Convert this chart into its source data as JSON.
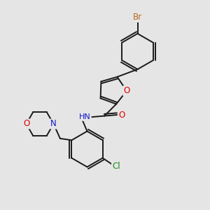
{
  "background_color": "#e5e5e5",
  "bond_color": "#1a1a1a",
  "atom_colors": {
    "Br": "#b8681e",
    "O": "#e00000",
    "N": "#1414cc",
    "Cl": "#1a8c1a"
  },
  "figsize": [
    3.0,
    3.0
  ],
  "dpi": 100
}
